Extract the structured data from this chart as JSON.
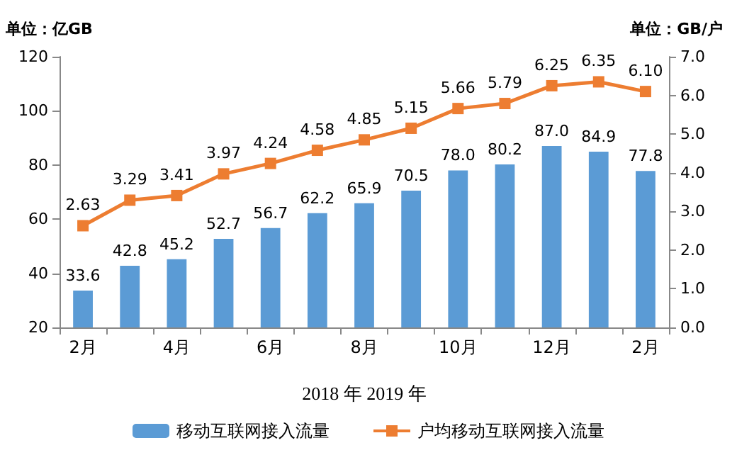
{
  "chart_data": {
    "type": "bar",
    "ylabel": "单位：亿GB",
    "y2label": "单位：GB/户",
    "xlabel": "2018 年 2019 年",
    "categories": [
      "2月",
      null,
      "4月",
      null,
      "6月",
      null,
      "8月",
      null,
      "10月",
      null,
      "12月",
      null,
      "2月"
    ],
    "series": [
      {
        "name": "移动互联网接入流量",
        "color": "#5b9bd5",
        "values": [
          33.6,
          42.8,
          45.2,
          52.7,
          56.7,
          62.2,
          65.9,
          70.5,
          78.0,
          80.2,
          87.0,
          84.9,
          77.8
        ],
        "value_labels": [
          "33.6",
          "42.8",
          "45.2",
          "52.7",
          "56.7",
          "62.2",
          "65.9",
          "70.5",
          "78.0",
          "80.2",
          "87.0",
          "84.9",
          "77.8"
        ]
      },
      {
        "name": "户均移动互联网接入流量",
        "type": "line",
        "axis": "y2",
        "color": "#ed7d31",
        "marker": "square",
        "values": [
          2.63,
          3.29,
          3.41,
          3.97,
          4.24,
          4.58,
          4.85,
          5.15,
          5.66,
          5.79,
          6.25,
          6.35,
          6.1
        ],
        "value_labels": [
          "2.63",
          "3.29",
          "3.41",
          "3.97",
          "4.24",
          "4.58",
          "4.85",
          "5.15",
          "5.66",
          "5.79",
          "6.25",
          "6.35",
          "6.10"
        ]
      }
    ],
    "ylim": [
      20,
      120
    ],
    "yticks": [
      20,
      40,
      60,
      80,
      100,
      120
    ],
    "y2lim": [
      0,
      7
    ],
    "y2ticks": [
      {
        "value": 0,
        "label": "0.0"
      },
      {
        "value": 1,
        "label": "1.0"
      },
      {
        "value": 2,
        "label": "2.0"
      },
      {
        "value": 3,
        "label": "3.0"
      },
      {
        "value": 4,
        "label": "4.0"
      },
      {
        "value": 5,
        "label": "5.0"
      },
      {
        "value": 6,
        "label": "6.0"
      },
      {
        "value": 7,
        "label": "7.0"
      }
    ],
    "grid": false,
    "legend": "bottom"
  }
}
